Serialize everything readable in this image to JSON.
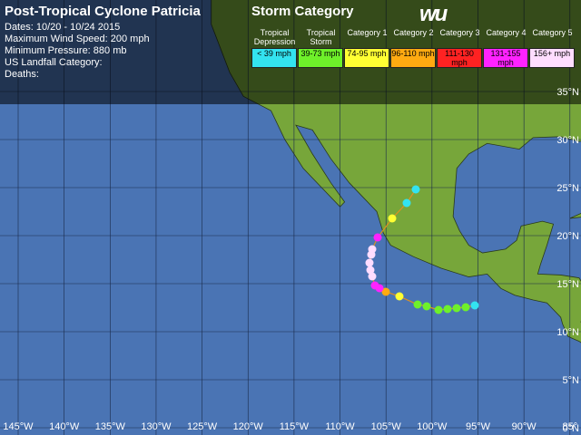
{
  "header": {
    "title": "Post-Tropical Cyclone Patricia",
    "lines": [
      "Dates: 10/20 - 10/24 2015",
      "Maximum Wind Speed: 200 mph",
      "Minimum Pressure: 880 mb",
      "US Landfall Category:",
      "Deaths:"
    ]
  },
  "legend": {
    "title": "Storm Category",
    "logo": "wu",
    "categories": [
      {
        "name": "Tropical Depression",
        "range": "< 39 mph",
        "color": "#33e3f0"
      },
      {
        "name": "Tropical Storm",
        "range": "39-73 mph",
        "color": "#6ef02a"
      },
      {
        "name": "Category 1",
        "range": "74-95 mph",
        "color": "#ffff33"
      },
      {
        "name": "Category 2",
        "range": "96-110 mph",
        "color": "#ffaa11"
      },
      {
        "name": "Category 3",
        "range": "111-130 mph",
        "color": "#ff2222"
      },
      {
        "name": "Category 4",
        "range": "131-155 mph",
        "color": "#ff22ff"
      },
      {
        "name": "Category 5",
        "range": "156+ mph",
        "color": "#ffddff"
      }
    ]
  },
  "longitude_labels": [
    "145°W",
    "140°W",
    "135°W",
    "130°W",
    "125°W",
    "120°W",
    "115°W",
    "110°W",
    "105°W",
    "100°W",
    "95°W",
    "90°W",
    "85°"
  ],
  "latitude_labels": [
    "35°N",
    "30°N",
    "25°N",
    "20°N",
    "15°N",
    "10°N",
    "5°N",
    "0°N"
  ]
}
